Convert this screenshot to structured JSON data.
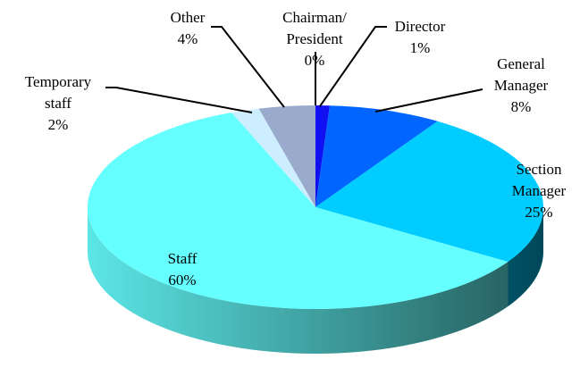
{
  "chart_data": {
    "type": "pie",
    "categories": [
      "Chairman/\nPresident",
      "Director",
      "General\nManager",
      "Section\nManager",
      "Staff",
      "Temporary\nstaff",
      "Other"
    ],
    "values": [
      0,
      1,
      8,
      25,
      60,
      2,
      4
    ],
    "value_labels": [
      "0%",
      "1%",
      "8%",
      "25%",
      "60%",
      "2%",
      "4%"
    ],
    "colors": [
      "#000080",
      "#1010f0",
      "#0066ff",
      "#00ccff",
      "#66ffff",
      "#cceeff",
      "#99aacc"
    ]
  }
}
